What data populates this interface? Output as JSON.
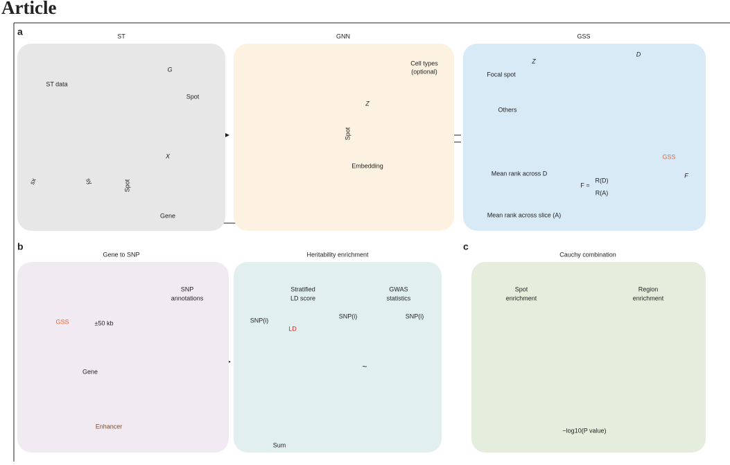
{
  "header": {
    "title": "Article"
  },
  "panel_a": {
    "label": "a",
    "st": {
      "title": "ST",
      "st_data": "ST data",
      "axis_x": "sx",
      "axis_y": "sy",
      "graph_label": "G",
      "graph_node": "Spot",
      "matrix_label": "X",
      "matrix_rows": "Spot",
      "matrix_cols": "Gene"
    },
    "gnn": {
      "title": "GNN",
      "cell_types": [
        "Cell types",
        "(optional)"
      ],
      "embedding_label": "Z",
      "embedding_rows": "Spot",
      "embedding": "Embedding"
    },
    "gss": {
      "title": "GSS",
      "z_label": "Z",
      "focal_spot": "Focal spot",
      "others": "Others",
      "d_label": "D",
      "rank_d": "Mean rank across D",
      "rank_a": "Mean rank across slice (A)",
      "formula": "F =",
      "numerator": "R(D)",
      "denominator": "R(A)",
      "curve_gss": "GSS",
      "curve_f": "F"
    }
  },
  "panel_b": {
    "label": "b",
    "gene_to_snp": {
      "title": "Gene to SNP",
      "gss": "GSS",
      "window": "±50 kb",
      "gene": "Gene",
      "enhancer": "Enhancer",
      "snp_annotations": [
        "SNP",
        "annotations"
      ]
    },
    "heritability": {
      "title": "Heritability enrichment",
      "ld_score": [
        "Stratified",
        "LD score"
      ],
      "gwas": [
        "GWAS",
        "statistics"
      ],
      "snp_i": [
        "SNP(i)",
        "SNP(i)",
        "SNP(i)"
      ],
      "ld": "LD",
      "sum": "Sum",
      "tilde": "~"
    }
  },
  "panel_c": {
    "label": "c",
    "title": "Cauchy combination",
    "spot": [
      "Spot",
      "enrichment"
    ],
    "region": [
      "Region",
      "enrichment"
    ],
    "scale": "−log10(P value)"
  }
}
